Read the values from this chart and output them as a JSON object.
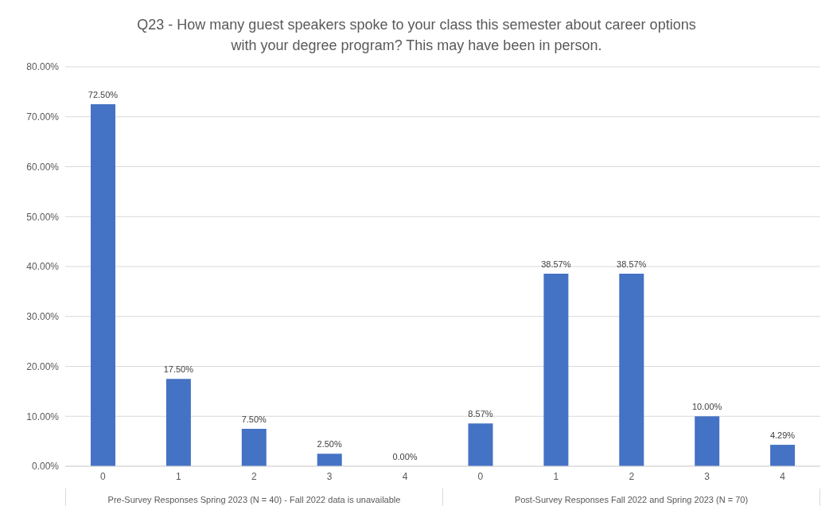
{
  "chart_data": {
    "type": "bar",
    "title": "Q23 - How many guest speakers spoke to your class this semester about career options with your degree program? This may have been in person.",
    "categories": [
      "0",
      "1",
      "2",
      "3",
      "4",
      "0",
      "1",
      "2",
      "3",
      "4"
    ],
    "values": [
      72.5,
      17.5,
      7.5,
      2.5,
      0,
      8.57,
      38.57,
      38.57,
      10,
      4.29
    ],
    "value_labels": [
      "72.50%",
      "17.50%",
      "7.50%",
      "2.50%",
      "0.00%",
      "8.57%",
      "38.57%",
      "38.57%",
      "10.00%",
      "4.29%"
    ],
    "color": "#4472c4",
    "ylim": [
      0,
      80
    ],
    "yticks": [
      {
        "value": 0,
        "label": "0.00%"
      },
      {
        "value": 10,
        "label": "10.00%"
      },
      {
        "value": 20,
        "label": "20.00%"
      },
      {
        "value": 30,
        "label": "30.00%"
      },
      {
        "value": 40,
        "label": "40.00%"
      },
      {
        "value": 50,
        "label": "50.00%"
      },
      {
        "value": 60,
        "label": "60.00%"
      },
      {
        "value": 70,
        "label": "70.00%"
      },
      {
        "value": 80,
        "label": "80.00%"
      }
    ],
    "grid": "y",
    "annotations": [
      "Pre-Survey Responses Spring 2023 (N = 40) - Fall 2022 data is unavailable",
      "Post-Survey Responses Fall 2022 and Spring 2023 (N = 70)"
    ]
  }
}
